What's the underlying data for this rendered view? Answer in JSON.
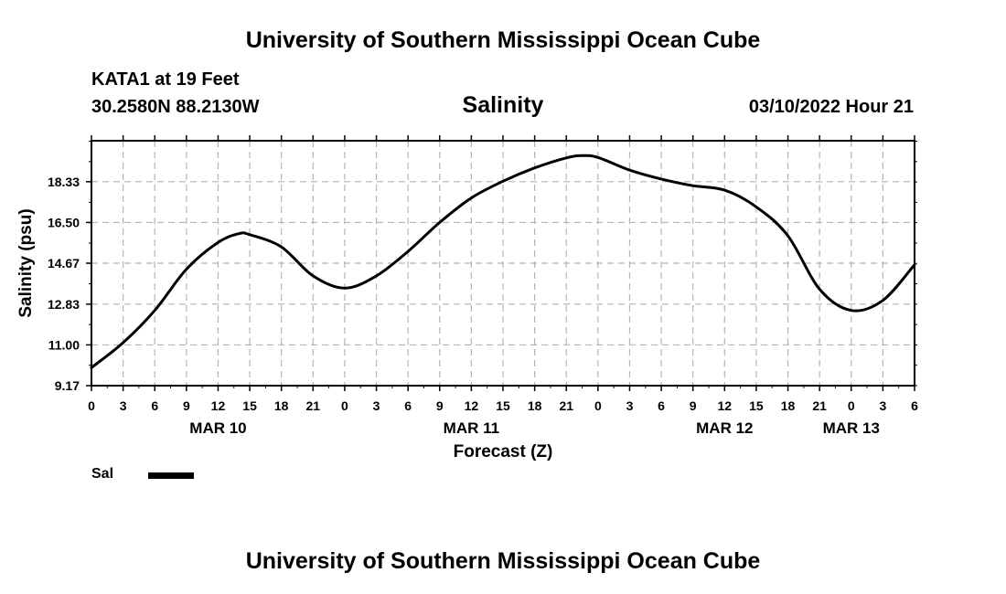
{
  "page": {
    "title_top": "University of Southern Mississippi Ocean Cube",
    "title_bottom": "University of Southern Mississippi Ocean Cube",
    "station": "KATA1 at 19 Feet",
    "coords": "30.2580N  88.2130W",
    "chart_title": "Salinity",
    "datetime": "03/10/2022 Hour 21"
  },
  "legend": {
    "label": "Sal",
    "color": "#000000"
  },
  "chart_data": {
    "type": "line",
    "title": "Salinity",
    "xlabel": "Forecast (Z)",
    "ylabel": "Salinity (psu)",
    "x_unit": "hours since MAR 10 00Z",
    "xlim": [
      0,
      78
    ],
    "ylim": [
      9.17,
      20.17
    ],
    "grid": true,
    "y_ticks": [
      9.17,
      11.0,
      12.83,
      14.67,
      16.5,
      18.33
    ],
    "y_tick_labels": [
      "9.17",
      "11.00",
      "12.83",
      "14.67",
      "16.50",
      "18.33"
    ],
    "x_ticks": [
      0,
      3,
      6,
      9,
      12,
      15,
      18,
      21,
      24,
      27,
      30,
      33,
      36,
      39,
      42,
      45,
      48,
      51,
      54,
      57,
      60,
      63,
      66,
      69,
      72,
      75,
      78
    ],
    "x_tick_labels": [
      "0",
      "3",
      "6",
      "9",
      "12",
      "15",
      "18",
      "21",
      "0",
      "3",
      "6",
      "9",
      "12",
      "15",
      "18",
      "21",
      "0",
      "3",
      "6",
      "9",
      "12",
      "15",
      "18",
      "21",
      "0",
      "3",
      "6"
    ],
    "date_labels": [
      {
        "x": 12,
        "label": "MAR 10"
      },
      {
        "x": 36,
        "label": "MAR 11"
      },
      {
        "x": 60,
        "label": "MAR 12"
      },
      {
        "x": 72,
        "label": "MAR 13"
      }
    ],
    "series": [
      {
        "name": "Sal",
        "x": [
          0,
          3,
          6,
          9,
          12,
          14,
          15,
          18,
          21,
          24,
          27,
          30,
          33,
          36,
          39,
          42,
          45,
          46.5,
          48,
          51,
          54,
          57,
          60,
          63,
          66,
          69,
          72,
          75,
          78
        ],
        "y": [
          9.98,
          11.1,
          12.55,
          14.4,
          15.6,
          16.0,
          15.95,
          15.4,
          14.1,
          13.55,
          14.1,
          15.2,
          16.5,
          17.6,
          18.35,
          18.95,
          19.4,
          19.5,
          19.42,
          18.85,
          18.45,
          18.15,
          17.95,
          17.2,
          15.9,
          13.5,
          12.55,
          13.0,
          14.6
        ]
      }
    ]
  }
}
